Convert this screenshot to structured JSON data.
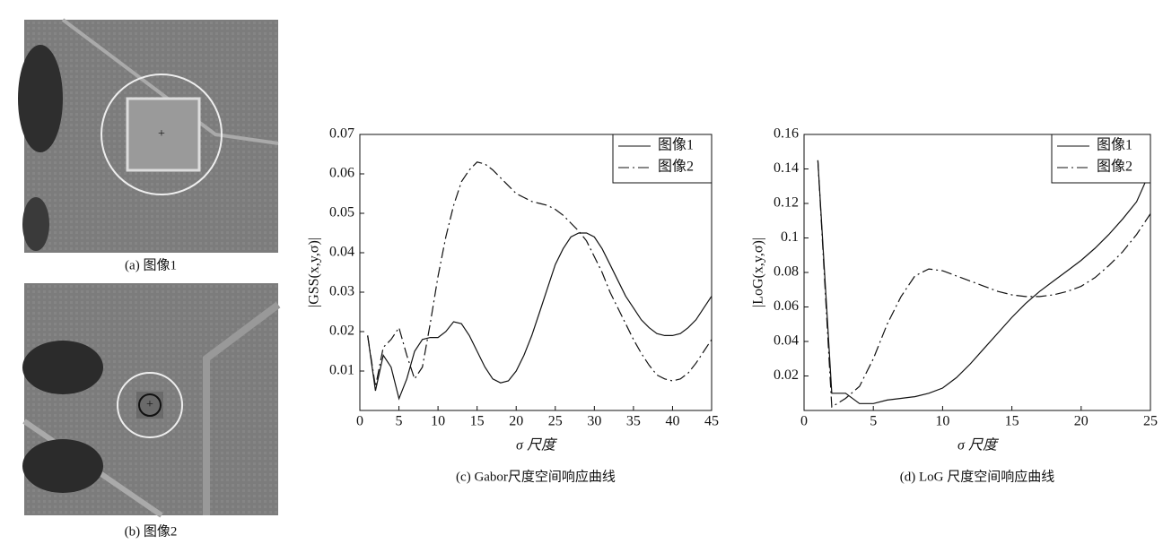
{
  "images": [
    {
      "caption": "(a) 图像1"
    },
    {
      "caption": "(b) 图像2"
    }
  ],
  "chart_data": [
    {
      "type": "line",
      "caption": "(c) Gabor尺度空间响应曲线",
      "x_label": "σ 尺度",
      "y_label": "|GSS(x,y,σ)|",
      "xlim": [
        0,
        45
      ],
      "xticks": [
        0,
        5,
        10,
        15,
        20,
        25,
        30,
        35,
        40,
        45
      ],
      "ylim": [
        0,
        0.07
      ],
      "yticks": [
        0.01,
        0.02,
        0.03,
        0.04,
        0.05,
        0.06,
        0.07
      ],
      "legend": "upper-right",
      "x": [
        1,
        2,
        3,
        4,
        5,
        6,
        7,
        8,
        9,
        10,
        11,
        12,
        13,
        14,
        15,
        16,
        17,
        18,
        19,
        20,
        21,
        22,
        23,
        24,
        25,
        26,
        27,
        28,
        29,
        30,
        31,
        32,
        33,
        34,
        35,
        36,
        37,
        38,
        39,
        40,
        41,
        42,
        43,
        44,
        45
      ],
      "series": [
        {
          "name": "图像1",
          "color": "#111111",
          "style": "solid",
          "values": [
            0.019,
            0.005,
            0.014,
            0.011,
            0.003,
            0.008,
            0.015,
            0.018,
            0.0185,
            0.0185,
            0.02,
            0.0225,
            0.022,
            0.019,
            0.015,
            0.011,
            0.008,
            0.007,
            0.0075,
            0.01,
            0.014,
            0.019,
            0.025,
            0.031,
            0.037,
            0.041,
            0.044,
            0.045,
            0.045,
            0.044,
            0.041,
            0.037,
            0.033,
            0.029,
            0.026,
            0.023,
            0.021,
            0.0195,
            0.019,
            0.019,
            0.0195,
            0.021,
            0.023,
            0.026,
            0.029
          ]
        },
        {
          "name": "图像2",
          "color": "#111111",
          "style": "dashdot",
          "values": [
            0.019,
            0.006,
            0.016,
            0.018,
            0.021,
            0.014,
            0.008,
            0.011,
            0.022,
            0.034,
            0.044,
            0.052,
            0.058,
            0.061,
            0.063,
            0.0625,
            0.061,
            0.059,
            0.057,
            0.055,
            0.054,
            0.053,
            0.0525,
            0.052,
            0.051,
            0.0495,
            0.0475,
            0.0455,
            0.043,
            0.039,
            0.035,
            0.03,
            0.026,
            0.022,
            0.018,
            0.0145,
            0.0115,
            0.009,
            0.008,
            0.0075,
            0.008,
            0.0095,
            0.012,
            0.015,
            0.018
          ]
        }
      ]
    },
    {
      "type": "line",
      "caption": "(d) LoG 尺度空间响应曲线",
      "x_label": "σ 尺度",
      "y_label": "|LoG(x,y,σ)|",
      "xlim": [
        0,
        25
      ],
      "xticks": [
        0,
        5,
        10,
        15,
        20,
        25
      ],
      "ylim": [
        0,
        0.16
      ],
      "yticks": [
        0.02,
        0.04,
        0.06,
        0.08,
        0.1,
        0.12,
        0.14,
        0.16
      ],
      "legend": "upper-right",
      "x": [
        1,
        2,
        3,
        4,
        5,
        6,
        7,
        8,
        9,
        10,
        11,
        12,
        13,
        14,
        15,
        16,
        17,
        18,
        19,
        20,
        21,
        22,
        23,
        24,
        25
      ],
      "series": [
        {
          "name": "图像1",
          "color": "#111111",
          "style": "solid",
          "values": [
            0.145,
            0.01,
            0.01,
            0.004,
            0.004,
            0.006,
            0.007,
            0.008,
            0.01,
            0.013,
            0.019,
            0.027,
            0.036,
            0.045,
            0.054,
            0.062,
            0.069,
            0.075,
            0.081,
            0.087,
            0.094,
            0.102,
            0.111,
            0.121,
            0.139
          ]
        },
        {
          "name": "图像2",
          "color": "#111111",
          "style": "dashdot",
          "values": [
            0.145,
            0.002,
            0.007,
            0.014,
            0.03,
            0.05,
            0.066,
            0.078,
            0.082,
            0.081,
            0.078,
            0.075,
            0.072,
            0.069,
            0.067,
            0.066,
            0.066,
            0.067,
            0.069,
            0.072,
            0.077,
            0.084,
            0.092,
            0.102,
            0.114
          ]
        }
      ]
    }
  ]
}
